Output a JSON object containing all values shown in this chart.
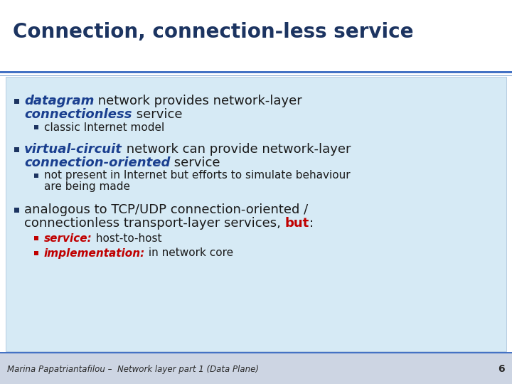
{
  "title": "Connection, connection-less service",
  "title_color": "#1c3461",
  "title_fontsize": 20,
  "bg_color": "#ffffff",
  "box_color": "#d6eaf5",
  "box_border_color": "#a0bcd8",
  "bullet_color": "#1c3461",
  "text_color": "#1a1a1a",
  "italic_blue_color": "#1a3f8f",
  "red_color": "#c00000",
  "separator_color": "#4472c4",
  "footer_text": "Marina Papatriantafilou –  Network layer part 1 (Data Plane)",
  "footer_number": "6",
  "footer_color": "#2a2a2a",
  "footer_bg": "#cdd5e3",
  "footer_line_color": "#4472c4"
}
